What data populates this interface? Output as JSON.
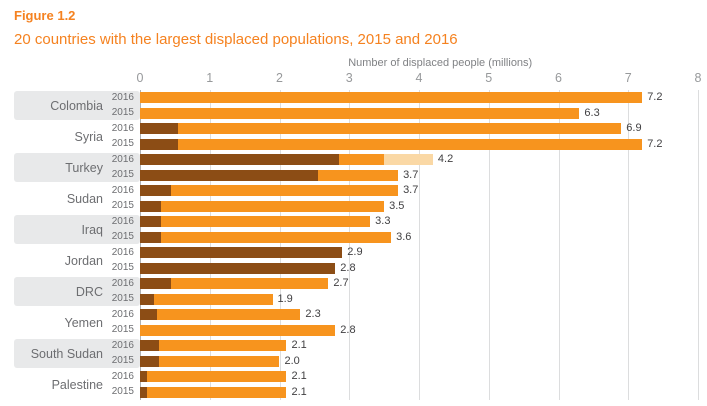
{
  "figure": {
    "label": "Figure 1.2",
    "title": "20 countries with the largest displaced populations, 2015 and 2016",
    "accent_color": "#F58220"
  },
  "chart_data": {
    "type": "bar",
    "orientation": "horizontal",
    "stacked": true,
    "axis_title": "Number of displaced people (millions)",
    "x_ticks": [
      0,
      1,
      2,
      3,
      4,
      5,
      6,
      7,
      8
    ],
    "xlim": [
      0,
      8
    ],
    "grid": true,
    "legend_position": "none",
    "colors": {
      "orange": "#F7941E",
      "dark": "#8C4D15",
      "pale": "#FAD8A5"
    },
    "groups": [
      {
        "country": "Colombia",
        "banded": true,
        "bars": [
          {
            "year": "2016",
            "total": 7.2,
            "label": "7.2",
            "segments": [
              {
                "color": "orange",
                "value": 7.2
              }
            ]
          },
          {
            "year": "2015",
            "total": 6.3,
            "label": "6.3",
            "segments": [
              {
                "color": "orange",
                "value": 6.3
              }
            ]
          }
        ]
      },
      {
        "country": "Syria",
        "banded": false,
        "bars": [
          {
            "year": "2016",
            "total": 6.9,
            "label": "6.9",
            "segments": [
              {
                "color": "dark",
                "value": 0.55
              },
              {
                "color": "orange",
                "value": 6.35
              }
            ]
          },
          {
            "year": "2015",
            "total": 7.2,
            "label": "7.2",
            "segments": [
              {
                "color": "dark",
                "value": 0.55
              },
              {
                "color": "orange",
                "value": 6.65
              }
            ]
          }
        ]
      },
      {
        "country": "Turkey",
        "banded": true,
        "bars": [
          {
            "year": "2016",
            "total": 4.2,
            "label": "4.2",
            "segments": [
              {
                "color": "dark",
                "value": 2.85
              },
              {
                "color": "orange",
                "value": 0.65
              },
              {
                "color": "pale",
                "value": 0.7
              }
            ]
          },
          {
            "year": "2015",
            "total": 3.7,
            "label": "3.7",
            "segments": [
              {
                "color": "dark",
                "value": 2.55
              },
              {
                "color": "orange",
                "value": 1.15
              }
            ]
          }
        ]
      },
      {
        "country": "Sudan",
        "banded": false,
        "bars": [
          {
            "year": "2016",
            "total": 3.7,
            "label": "3.7",
            "segments": [
              {
                "color": "dark",
                "value": 0.45
              },
              {
                "color": "orange",
                "value": 3.25
              }
            ]
          },
          {
            "year": "2015",
            "total": 3.5,
            "label": "3.5",
            "segments": [
              {
                "color": "dark",
                "value": 0.3
              },
              {
                "color": "orange",
                "value": 3.2
              }
            ]
          }
        ]
      },
      {
        "country": "Iraq",
        "banded": true,
        "bars": [
          {
            "year": "2016",
            "total": 3.3,
            "label": "3.3",
            "segments": [
              {
                "color": "dark",
                "value": 0.3
              },
              {
                "color": "orange",
                "value": 3.0
              }
            ]
          },
          {
            "year": "2015",
            "total": 3.6,
            "label": "3.6",
            "segments": [
              {
                "color": "dark",
                "value": 0.3
              },
              {
                "color": "orange",
                "value": 3.3
              }
            ]
          }
        ]
      },
      {
        "country": "Jordan",
        "banded": false,
        "bars": [
          {
            "year": "2016",
            "total": 2.9,
            "label": "2.9",
            "segments": [
              {
                "color": "dark",
                "value": 2.9
              }
            ]
          },
          {
            "year": "2015",
            "total": 2.8,
            "label": "2.8",
            "segments": [
              {
                "color": "dark",
                "value": 2.8
              }
            ]
          }
        ]
      },
      {
        "country": "DRC",
        "banded": true,
        "bars": [
          {
            "year": "2016",
            "total": 2.7,
            "label": "2.7",
            "segments": [
              {
                "color": "dark",
                "value": 0.45
              },
              {
                "color": "orange",
                "value": 2.25
              }
            ]
          },
          {
            "year": "2015",
            "total": 1.9,
            "label": "1.9",
            "segments": [
              {
                "color": "dark",
                "value": 0.2
              },
              {
                "color": "orange",
                "value": 1.7
              }
            ]
          }
        ]
      },
      {
        "country": "Yemen",
        "banded": false,
        "bars": [
          {
            "year": "2016",
            "total": 2.3,
            "label": "2.3",
            "segments": [
              {
                "color": "dark",
                "value": 0.25
              },
              {
                "color": "orange",
                "value": 2.05
              }
            ]
          },
          {
            "year": "2015",
            "total": 2.8,
            "label": "2.8",
            "segments": [
              {
                "color": "orange",
                "value": 2.8
              }
            ]
          }
        ]
      },
      {
        "country": "South Sudan",
        "banded": true,
        "bars": [
          {
            "year": "2016",
            "total": 2.1,
            "label": "2.1",
            "segments": [
              {
                "color": "dark",
                "value": 0.27
              },
              {
                "color": "orange",
                "value": 1.83
              }
            ]
          },
          {
            "year": "2015",
            "total": 2.0,
            "label": "2.0",
            "segments": [
              {
                "color": "dark",
                "value": 0.27
              },
              {
                "color": "orange",
                "value": 1.73
              }
            ]
          }
        ]
      },
      {
        "country": "Palestine",
        "banded": false,
        "bars": [
          {
            "year": "2016",
            "total": 2.1,
            "label": "2.1",
            "segments": [
              {
                "color": "dark",
                "value": 0.1
              },
              {
                "color": "orange",
                "value": 2.0
              }
            ]
          },
          {
            "year": "2015",
            "total": 2.1,
            "label": "2.1",
            "segments": [
              {
                "color": "dark",
                "value": 0.1
              },
              {
                "color": "orange",
                "value": 2.0
              }
            ]
          }
        ]
      }
    ]
  }
}
